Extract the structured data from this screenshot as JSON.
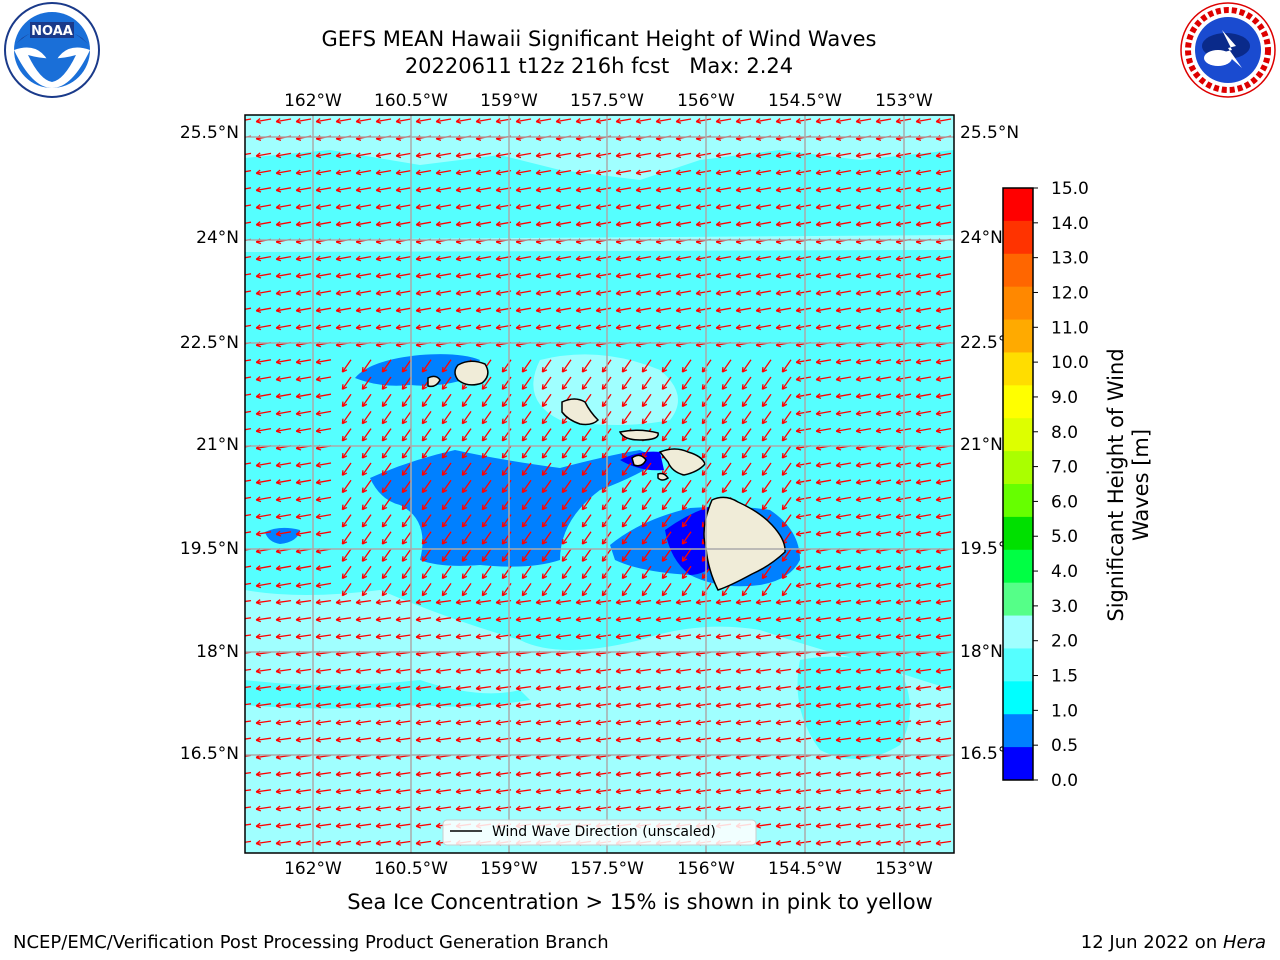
{
  "title": {
    "line1": "GEFS MEAN Hawaii Significant Height of Wind Waves",
    "line2": "20220611 t12z 216h fcst   Max: 2.24"
  },
  "map": {
    "lon_range": [
      -163,
      -152
    ],
    "lat_range": [
      15,
      25.8
    ],
    "lon_ticks": [
      "162°W",
      "160.5°W",
      "159°W",
      "157.5°W",
      "156°W",
      "154.5°W",
      "153°W"
    ],
    "lat_ticks": [
      "25.5°N",
      "24°N",
      "22.5°N",
      "21°N",
      "19.5°N",
      "18°N",
      "16.5°N"
    ],
    "vector_color": "#ff0000",
    "land_color": "#f0ecd8"
  },
  "legend": {
    "label": "Wind Wave Direction (unscaled)"
  },
  "colorbar": {
    "label": "Significant Height of Wind Waves [m]",
    "label_line1": "Significant Height of Wind",
    "label_line2": "Waves [m]",
    "ticks": [
      "15.0",
      "14.0",
      "13.0",
      "12.0",
      "11.0",
      "10.0",
      "9.0",
      "8.0",
      "7.0",
      "6.0",
      "5.0",
      "4.0",
      "3.0",
      "2.0",
      "1.5",
      "1.0",
      "0.5",
      "0.0"
    ],
    "colors": [
      "#ff0000",
      "#ff3300",
      "#ff6600",
      "#ff8800",
      "#ffaa00",
      "#ffdd00",
      "#ffff00",
      "#ddff00",
      "#aaff00",
      "#66ff00",
      "#00e000",
      "#00ff44",
      "#55ff88",
      "#a0ffff",
      "#55ffff",
      "#00ffff",
      "#0080ff",
      "#0000ff"
    ]
  },
  "caption": "Sea Ice Concentration > 15% is shown in pink to yellow",
  "footer": {
    "left": "NCEP/EMC/Verification Post Processing Product Generation Branch",
    "right_prefix": "12 Jun 2022 on ",
    "right_host": "Hera"
  }
}
